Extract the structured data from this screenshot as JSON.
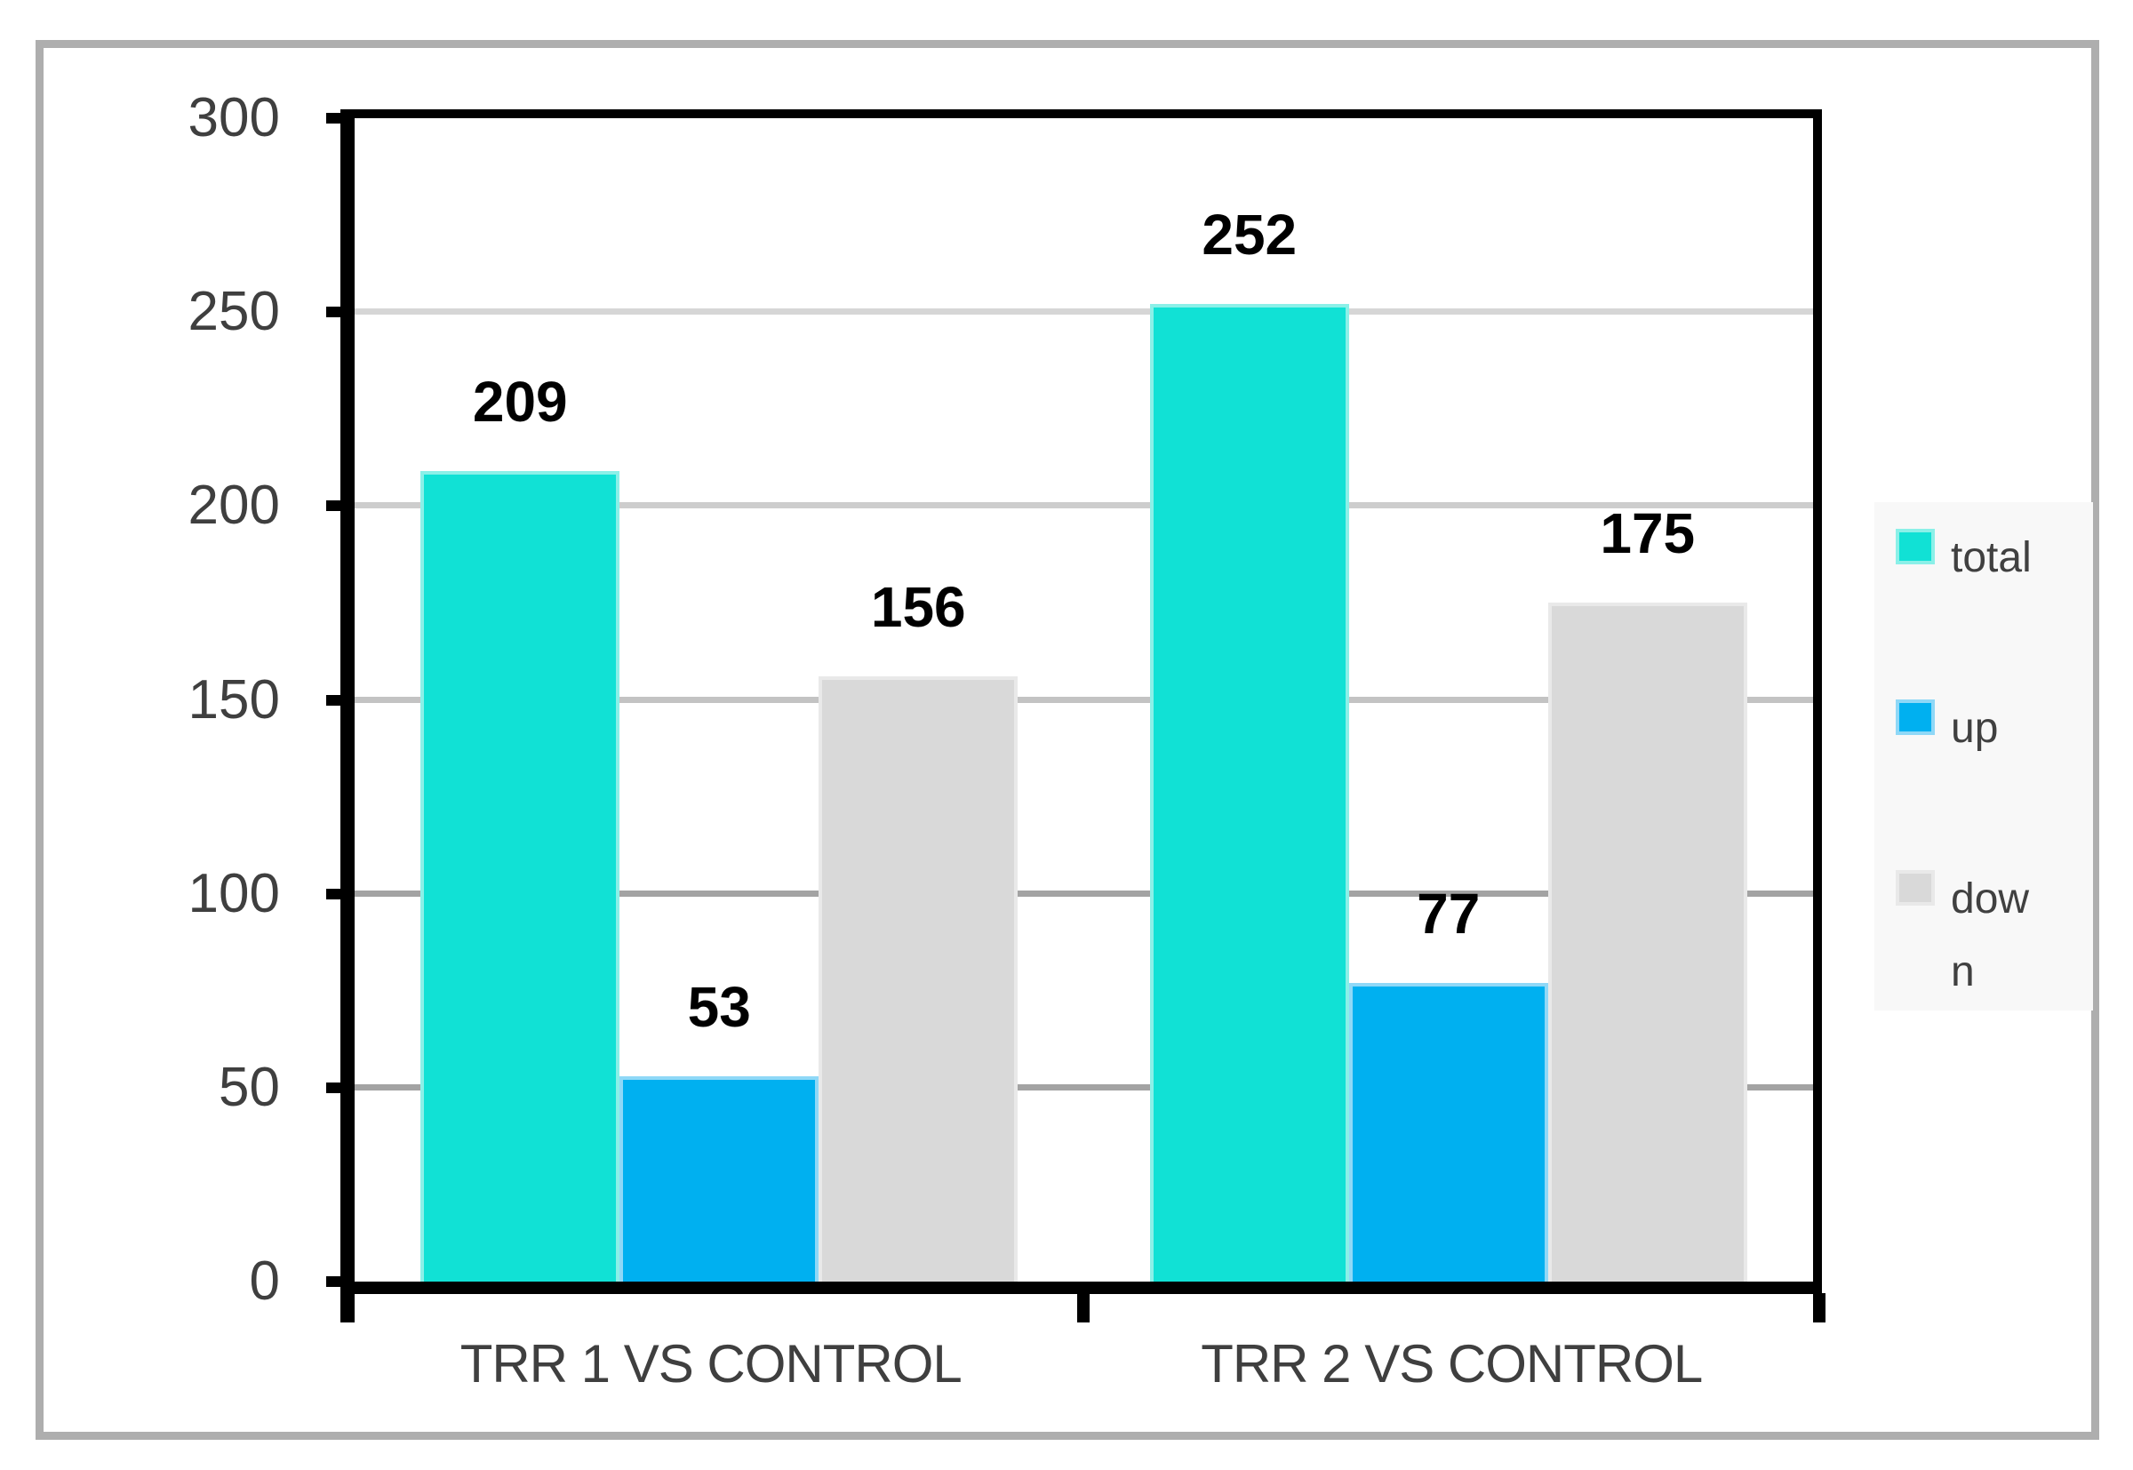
{
  "chart_data": {
    "type": "bar",
    "title": "",
    "xlabel": "",
    "ylabel": "",
    "categories": [
      "TRR 1 VS CONTROL",
      "TRR 2 VS CONTROL"
    ],
    "series": [
      {
        "name": "total",
        "color": "#11e1d5",
        "border_color": "#8bf0e8",
        "values": [
          209,
          252
        ]
      },
      {
        "name": "up",
        "color": "#00b0f0",
        "border_color": "#8fd8f7",
        "values": [
          53,
          77
        ]
      },
      {
        "name": "down",
        "color": "#d9d9d9",
        "border_color": "#e9e9e9",
        "values": [
          156,
          175
        ]
      }
    ],
    "ylim": [
      0,
      300
    ],
    "yticks": [
      0,
      50,
      100,
      150,
      200,
      250,
      300
    ],
    "grid": true,
    "data_labels": true,
    "legend_position": "right"
  },
  "legend": {
    "items": [
      {
        "label": "total"
      },
      {
        "label": "up"
      },
      {
        "label": "down"
      }
    ]
  },
  "colors": {
    "plot_border": "#000000",
    "frame_border": "#aeaeae",
    "axis_text": "#3f3f3f",
    "data_label_text": "#000000",
    "legend_background": "#f8f8f8"
  }
}
